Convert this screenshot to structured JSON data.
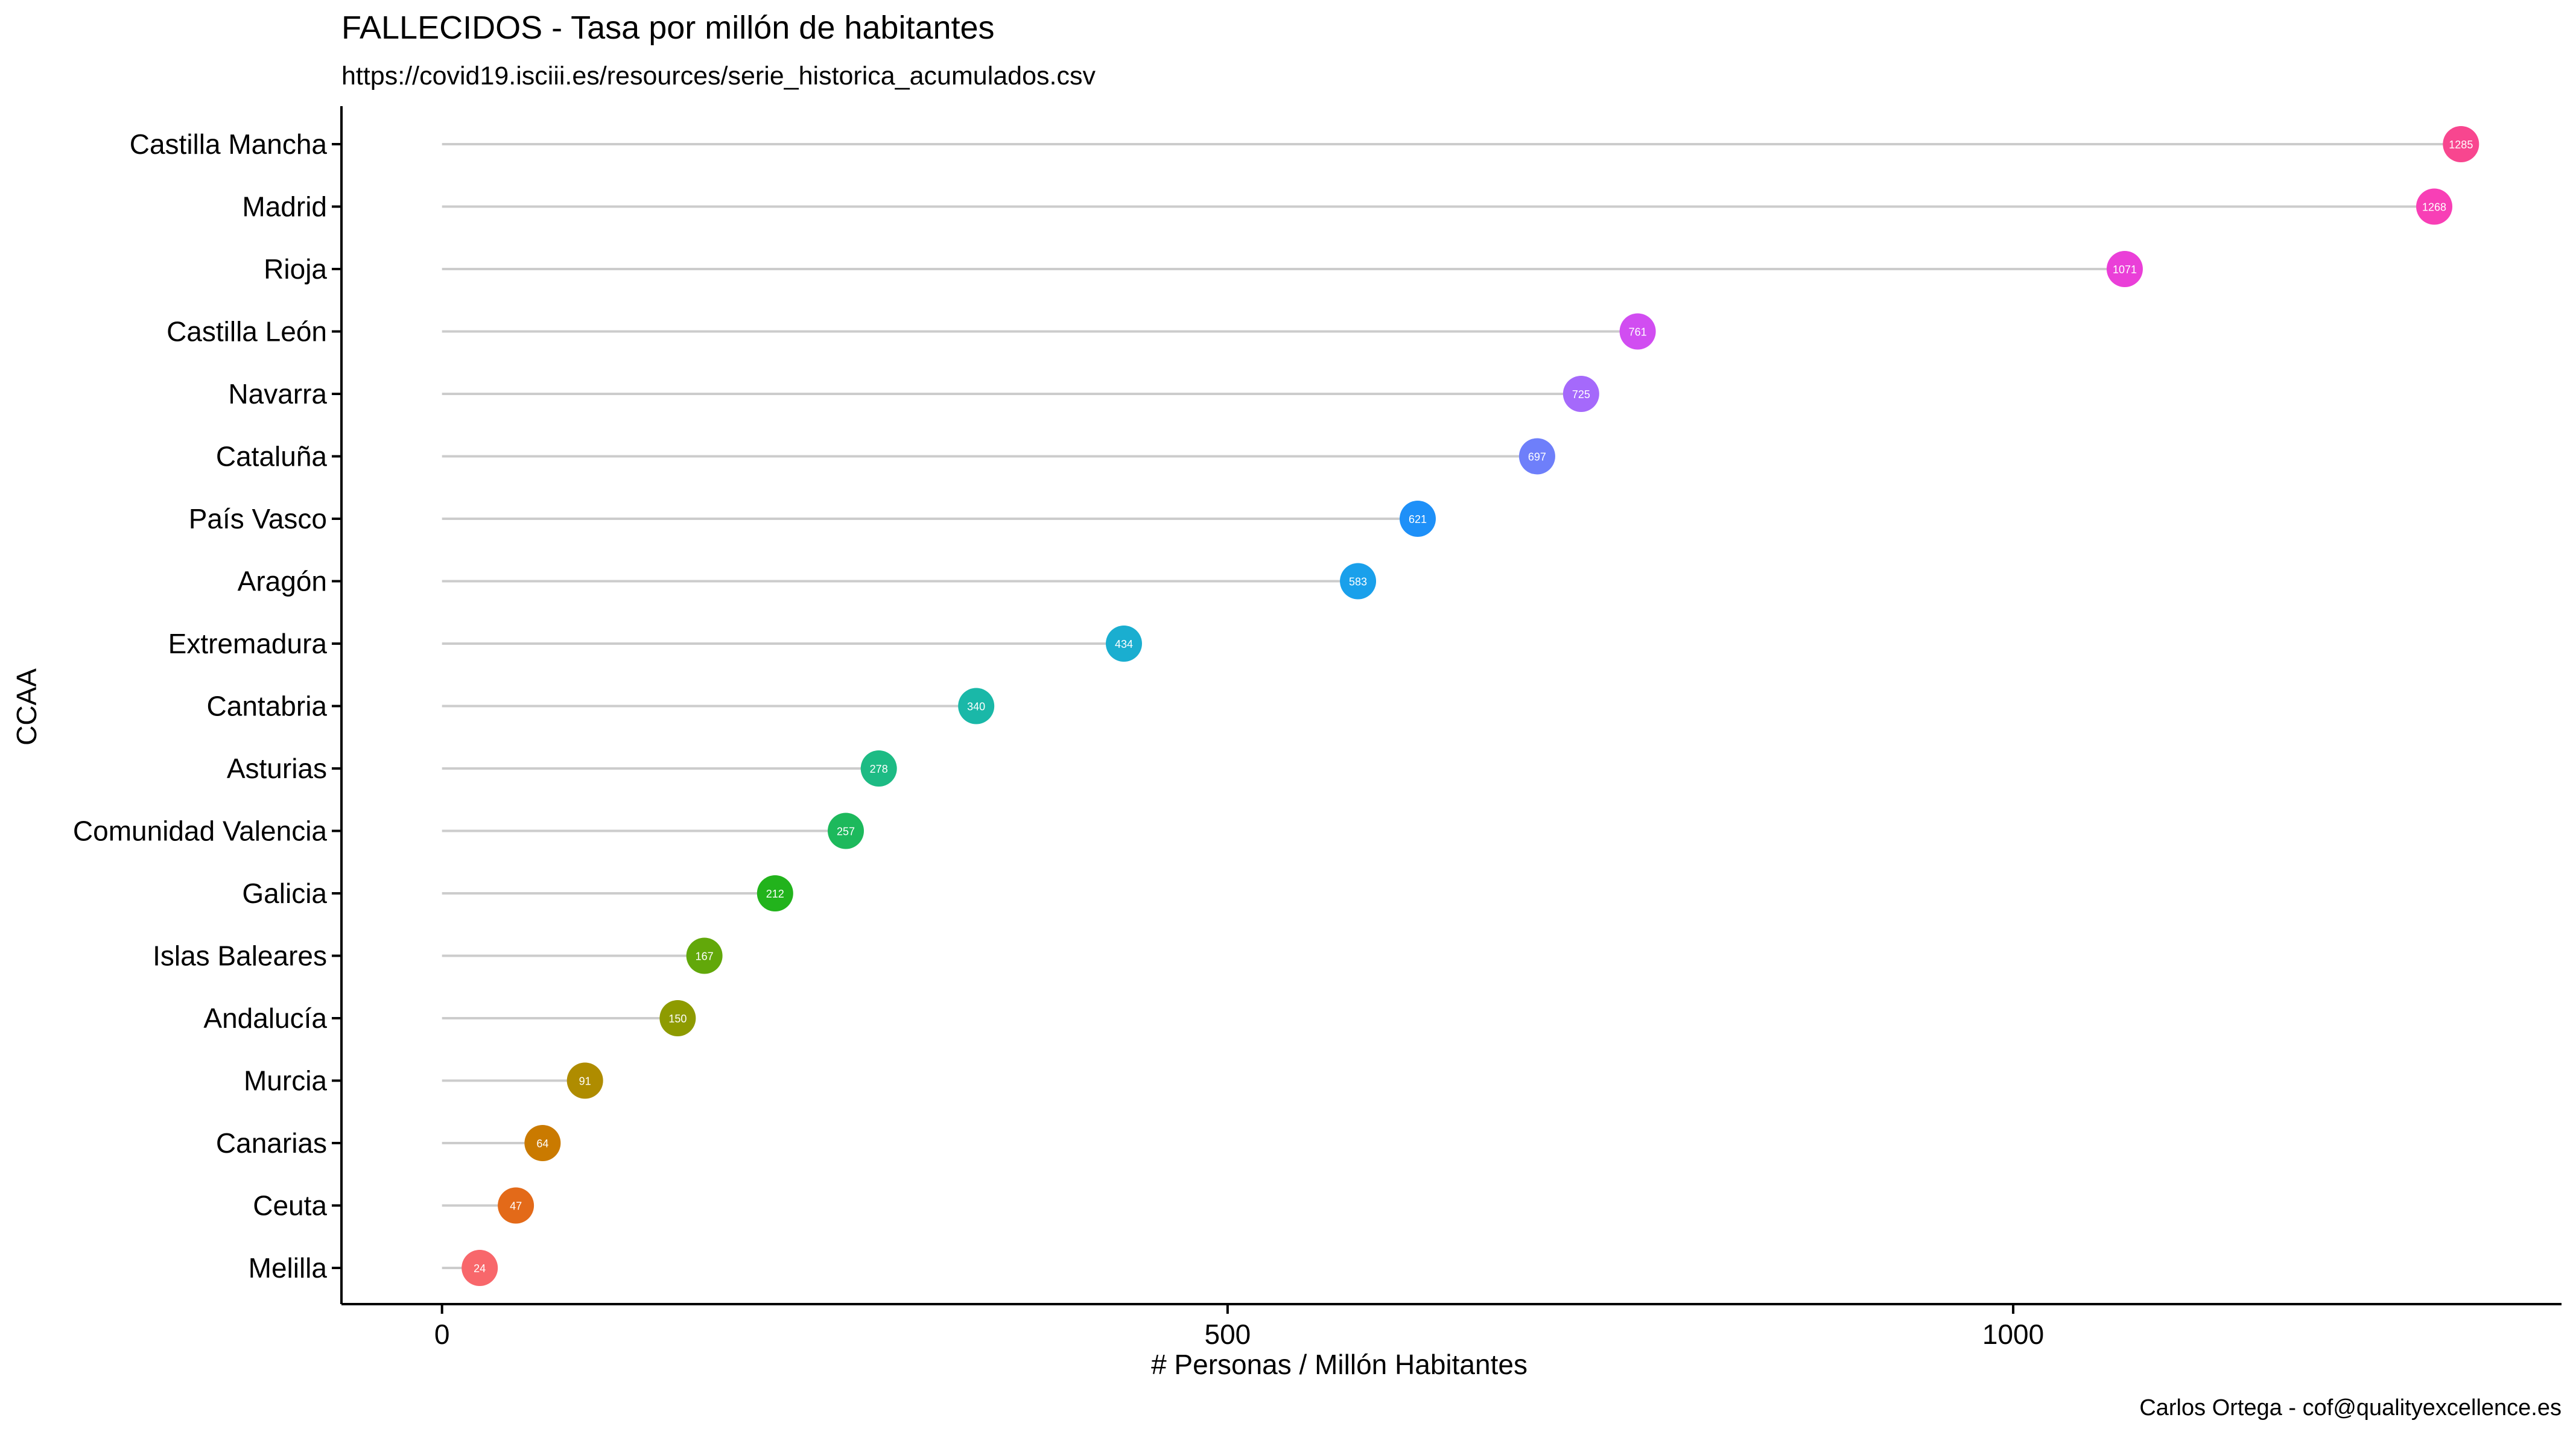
{
  "chart_data": {
    "type": "lollipop",
    "title": "FALLECIDOS - Tasa por millón de habitantes",
    "subtitle": "https://covid19.isciii.es/resources/serie_historica_acumulados.csv",
    "caption": "Carlos Ortega - cof@qualityexcellence.es",
    "xlabel": "# Personas / Millón Habitantes",
    "ylabel": "CCAA",
    "xlim": [
      -64,
      1349
    ],
    "xticks": [
      0,
      500,
      1000
    ],
    "xtick_labels": [
      "0",
      "500",
      "1000"
    ],
    "categories": [
      "Castilla Mancha",
      "Madrid",
      "Rioja",
      "Castilla León",
      "Navarra",
      "Cataluña",
      "País Vasco",
      "Aragón",
      "Extremadura",
      "Cantabria",
      "Asturias",
      "Comunidad Valencia",
      "Galicia",
      "Islas Baleares",
      "Andalucía",
      "Murcia",
      "Canarias",
      "Ceuta",
      "Melilla"
    ],
    "values": [
      1285,
      1268,
      1071,
      761,
      725,
      697,
      621,
      583,
      434,
      340,
      278,
      257,
      212,
      167,
      150,
      91,
      64,
      47,
      24
    ],
    "labels": [
      "1285",
      "1268",
      "1071",
      "761",
      "725",
      "697",
      "621",
      "583",
      "434",
      "340",
      "278",
      "257",
      "212",
      "167",
      "150",
      "91",
      "64",
      "47",
      "24"
    ],
    "colors": [
      "#F8468F",
      "#F83FB6",
      "#EA3FD8",
      "#D14DF1",
      "#A569FB",
      "#6E7FFA",
      "#1E90F8",
      "#1AA0EB",
      "#1AAED0",
      "#1AB8A8",
      "#1DBB84",
      "#1DB95C",
      "#22B31C",
      "#62A80A",
      "#8E9B00",
      "#AF8C00",
      "#CA7A00",
      "#E36A19",
      "#F8676B"
    ],
    "grid": false,
    "legend": "none"
  }
}
